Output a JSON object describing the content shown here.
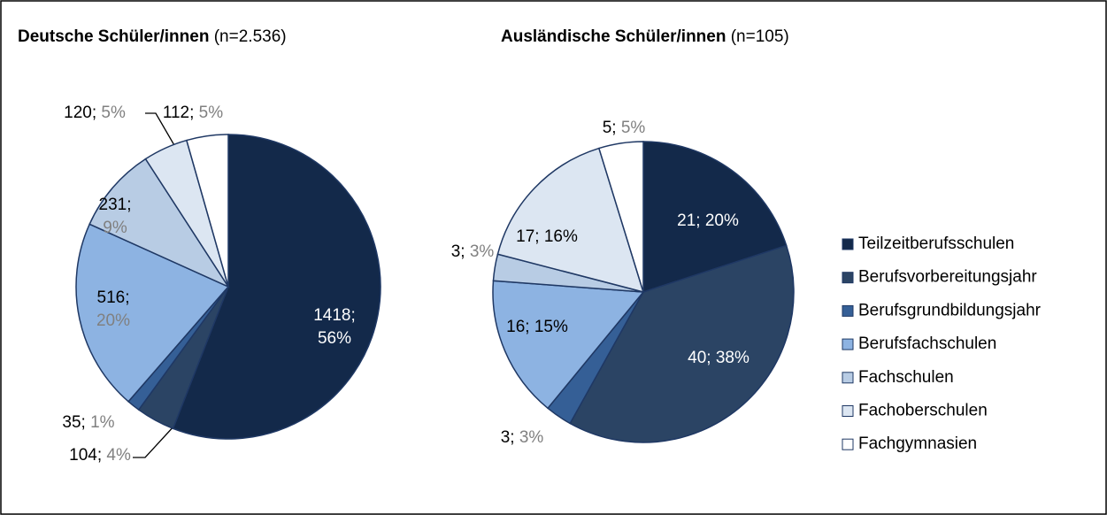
{
  "chart_data": [
    {
      "type": "pie",
      "title": "Deutsche Schüler/innen",
      "subtitle": "(n=2.536)",
      "values": [
        1418,
        104,
        35,
        516,
        231,
        120,
        112
      ],
      "value_labels": [
        "1418; 56%",
        "104; 4%",
        "35; 1%",
        "516; 20%",
        "231; 9%",
        "120; 5%",
        "112; 5%"
      ]
    },
    {
      "type": "pie",
      "title": "Ausländische Schüler/innen",
      "subtitle": "(n=105)",
      "values": [
        21,
        40,
        3,
        16,
        3,
        17,
        5
      ],
      "value_labels": [
        "21; 20%",
        "40; 38%",
        "3; 3%",
        "16; 15%",
        "3; 3%",
        "17; 16%",
        "5; 5%"
      ]
    }
  ],
  "legend": {
    "entries": [
      "Teilzeitberufsschulen",
      "Berufsvorbereitungsjahr",
      "Berufsgrundbildungsjahr",
      "Berufsfachschulen",
      "Fachschulen",
      "Fachoberschulen",
      "Fachgymnasien"
    ],
    "colors": [
      "#13294a",
      "#2b4464",
      "#355f96",
      "#8db3e2",
      "#b8cce4",
      "#dce6f2",
      "#ffffff"
    ]
  }
}
